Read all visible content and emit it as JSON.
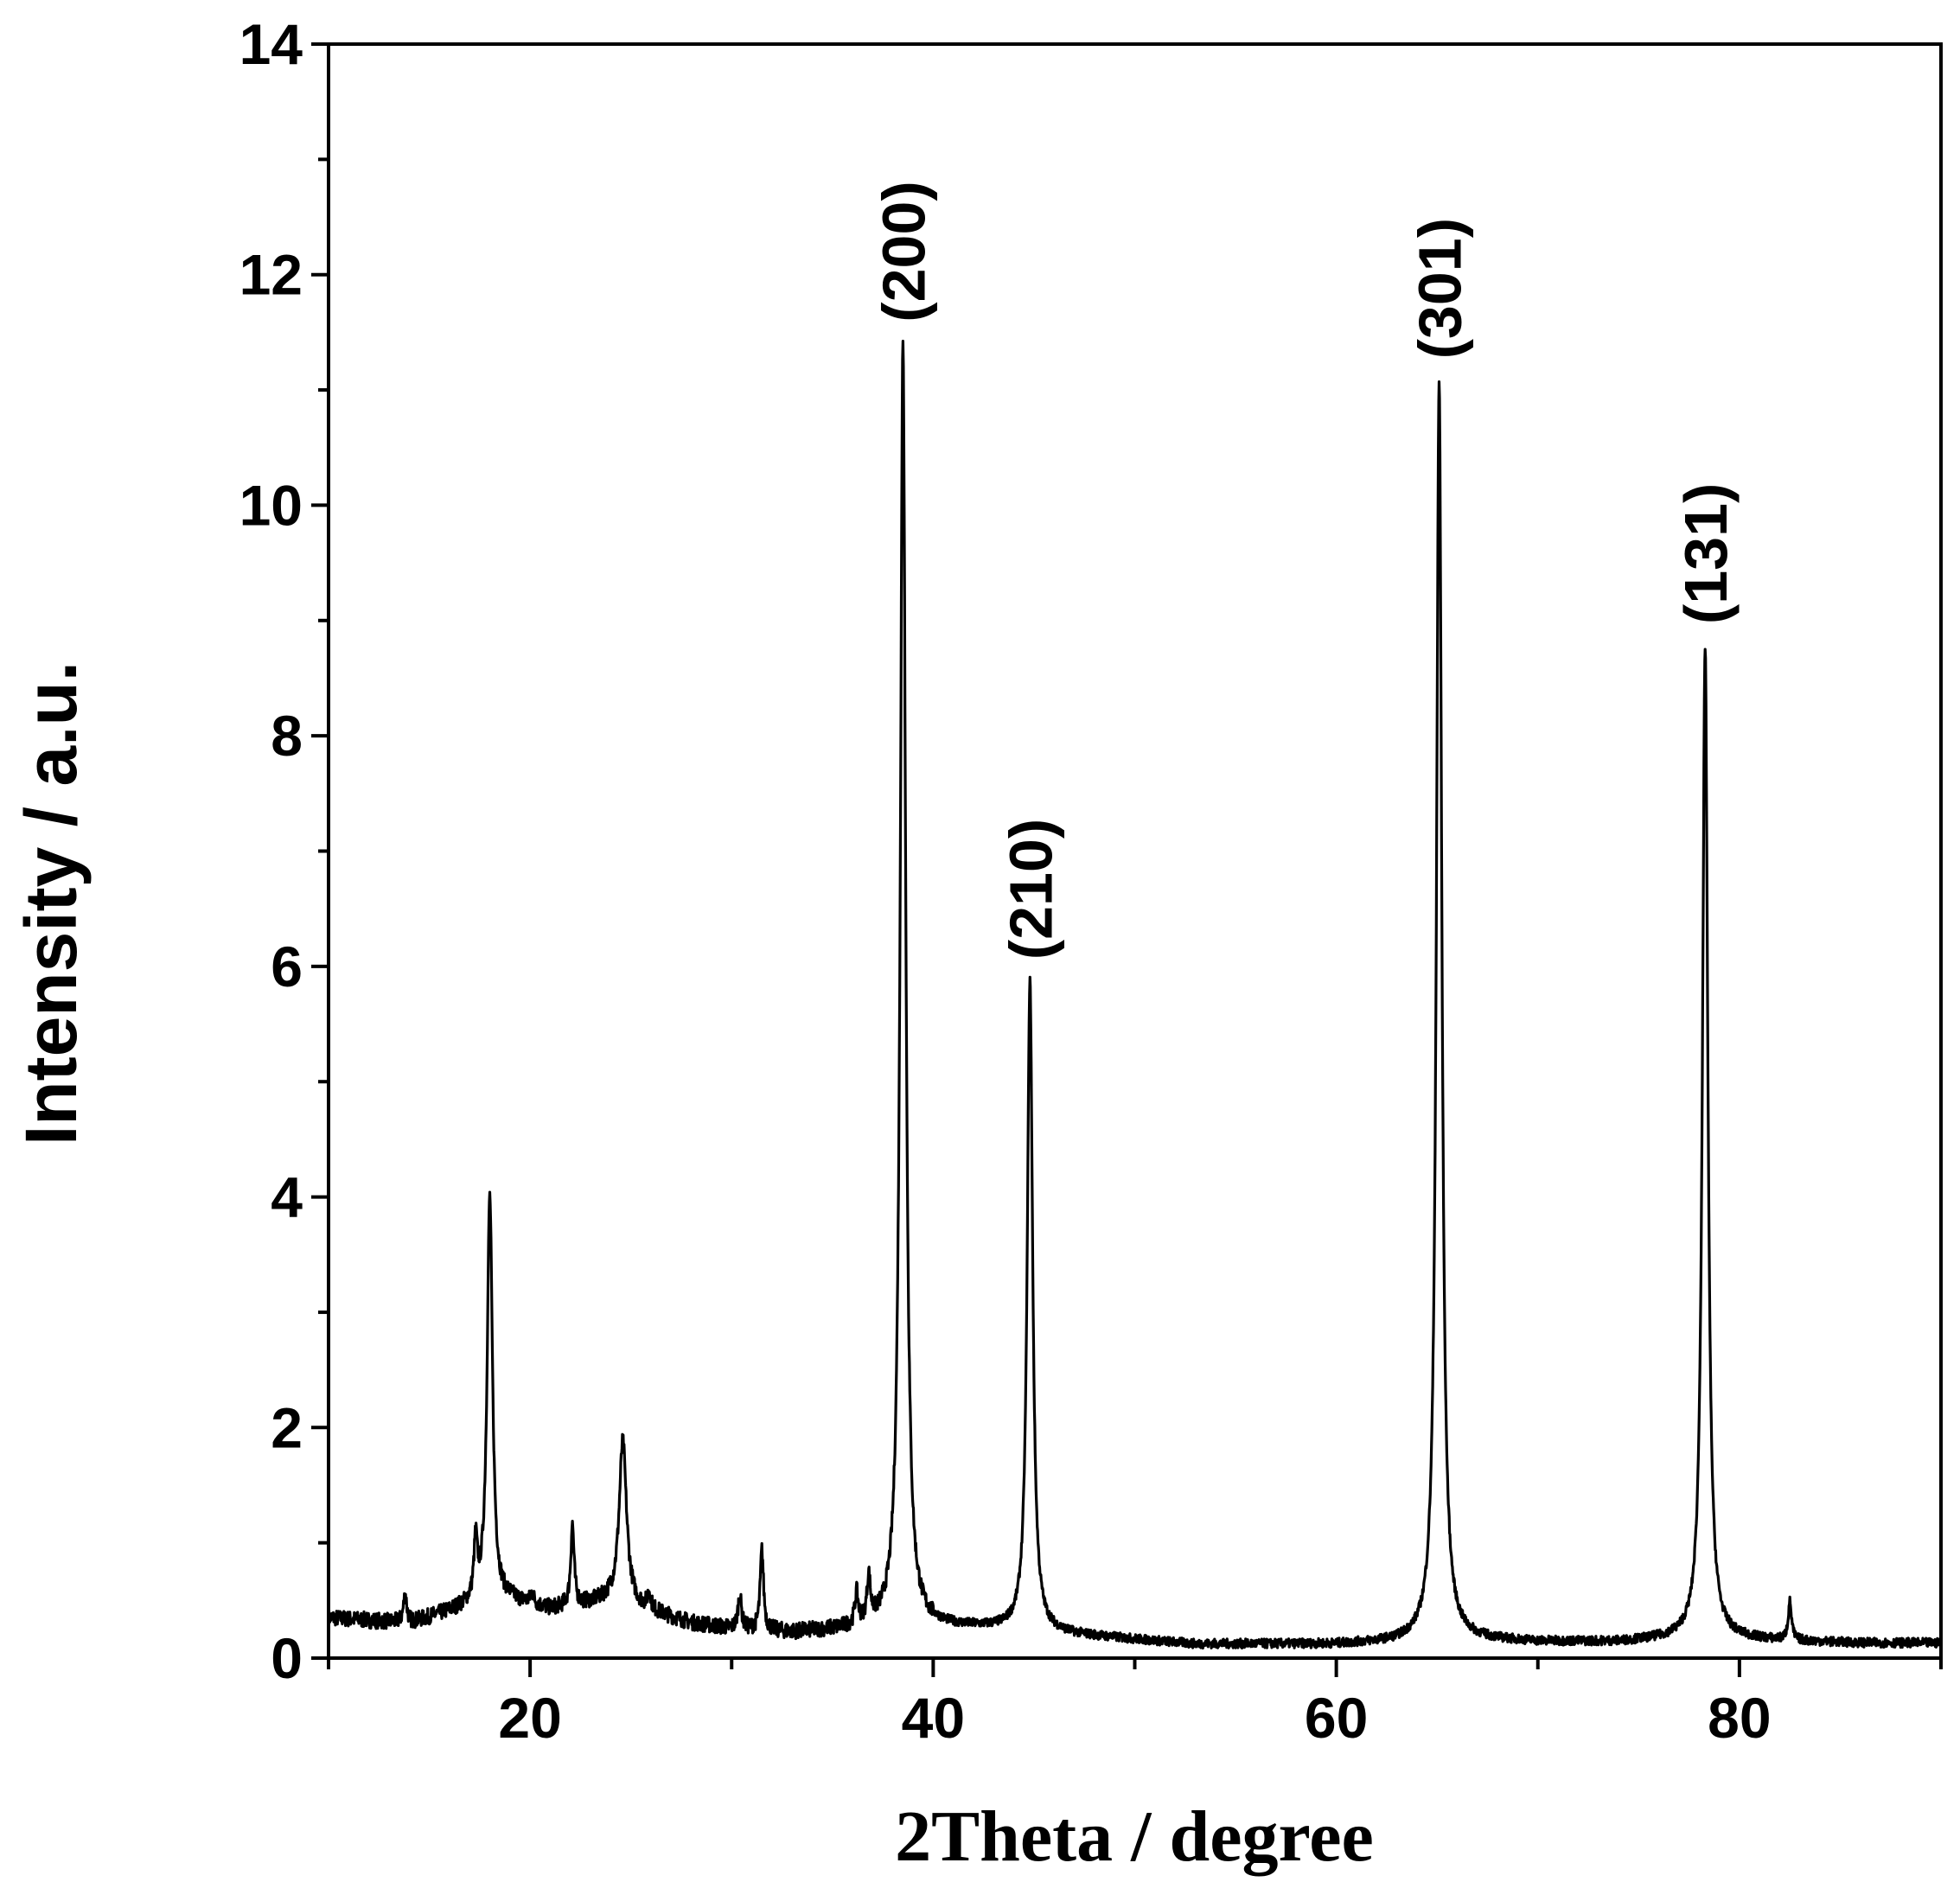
{
  "chart_data": {
    "type": "line",
    "title": "",
    "xlabel": "2Theta / degree",
    "ylabel": "Intensity / a.u.",
    "xlim": [
      10,
      90
    ],
    "ylim": [
      0,
      14
    ],
    "x_ticks": [
      20,
      40,
      60,
      80
    ],
    "y_ticks": [
      0,
      2,
      4,
      6,
      8,
      10,
      12,
      14
    ],
    "grid": false,
    "legend": "none",
    "line_color": "#000000",
    "baseline": [
      [
        10,
        0.35
      ],
      [
        14,
        0.3
      ],
      [
        17,
        0.45
      ],
      [
        19,
        0.5
      ],
      [
        21,
        0.42
      ],
      [
        24,
        0.5
      ],
      [
        26,
        0.4
      ],
      [
        28,
        0.3
      ],
      [
        30,
        0.25
      ],
      [
        33,
        0.22
      ],
      [
        36,
        0.25
      ],
      [
        38,
        0.3
      ],
      [
        41,
        0.27
      ],
      [
        44,
        0.25
      ],
      [
        47,
        0.2
      ],
      [
        50,
        0.16
      ],
      [
        53,
        0.12
      ],
      [
        56,
        0.12
      ],
      [
        60,
        0.12
      ],
      [
        63,
        0.14
      ],
      [
        65,
        0.18
      ],
      [
        67,
        0.16
      ],
      [
        70,
        0.14
      ],
      [
        74,
        0.14
      ],
      [
        78,
        0.18
      ],
      [
        82,
        0.15
      ],
      [
        86,
        0.13
      ],
      [
        90,
        0.13
      ]
    ],
    "peaks": [
      {
        "x": 13.8,
        "y": 0.55
      },
      {
        "x": 17.3,
        "y": 0.95
      },
      {
        "x": 18.0,
        "y": 4.0
      },
      {
        "x": 20.1,
        "y": 0.55
      },
      {
        "x": 22.1,
        "y": 1.15
      },
      {
        "x": 24.6,
        "y": 1.88
      },
      {
        "x": 25.9,
        "y": 0.55
      },
      {
        "x": 30.4,
        "y": 0.55
      },
      {
        "x": 31.5,
        "y": 0.93
      },
      {
        "x": 36.2,
        "y": 0.52
      },
      {
        "x": 36.8,
        "y": 0.65
      },
      {
        "x": 38.5,
        "y": 11.4,
        "label": "(200)"
      },
      {
        "x": 44.8,
        "y": 5.87,
        "label": "(210)"
      },
      {
        "x": 65.1,
        "y": 11.08,
        "label": "(301)"
      },
      {
        "x": 78.3,
        "y": 8.78,
        "label": "(131)"
      },
      {
        "x": 82.5,
        "y": 0.48
      }
    ]
  }
}
